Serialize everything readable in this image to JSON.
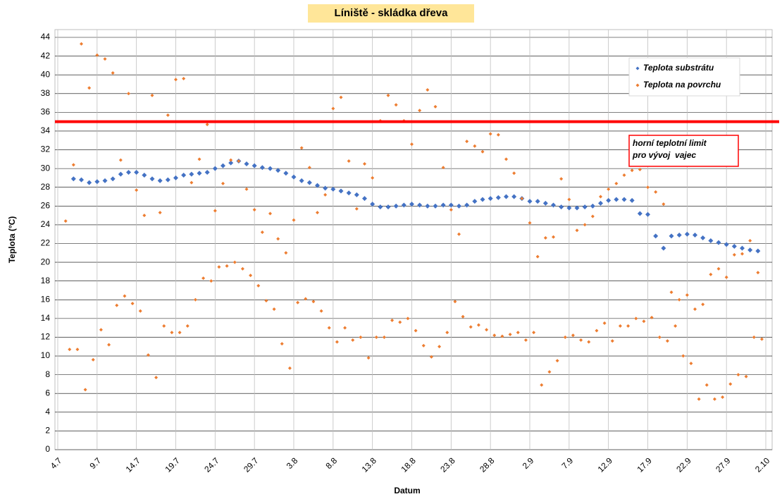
{
  "chart_data": {
    "type": "scatter",
    "title": "Líniště - skládka dřeva",
    "x_label": "Datum",
    "y_label": "Teplota (°C)",
    "xlim": [
      0,
      90
    ],
    "xticks": [
      {
        "value": 0,
        "label": "4.7"
      },
      {
        "value": 5,
        "label": "9.7"
      },
      {
        "value": 10,
        "label": "14.7"
      },
      {
        "value": 15,
        "label": "19.7"
      },
      {
        "value": 20,
        "label": "24.7"
      },
      {
        "value": 25,
        "label": "29.7"
      },
      {
        "value": 30,
        "label": "3.8"
      },
      {
        "value": 35,
        "label": "8.8"
      },
      {
        "value": 40,
        "label": "13.8"
      },
      {
        "value": 45,
        "label": "18.8"
      },
      {
        "value": 50,
        "label": "23.8"
      },
      {
        "value": 55,
        "label": "28.8"
      },
      {
        "value": 60,
        "label": "2.9"
      },
      {
        "value": 65,
        "label": "7.9"
      },
      {
        "value": 70,
        "label": "12.9"
      },
      {
        "value": 75,
        "label": "17.9"
      },
      {
        "value": 80,
        "label": "22.9"
      },
      {
        "value": 85,
        "label": "27.9"
      },
      {
        "value": 90,
        "label": "2.10"
      }
    ],
    "ylim": [
      0,
      44
    ],
    "yticks": [
      0,
      2,
      4,
      6,
      8,
      10,
      12,
      14,
      16,
      18,
      20,
      22,
      24,
      26,
      28,
      30,
      32,
      34,
      36,
      38,
      40,
      42,
      44
    ],
    "grid": true,
    "legend": "top-right",
    "limit_line": {
      "value": 35,
      "color": "#ff0000"
    },
    "annotation": [
      "horní teplotní limit",
      "pro vývoj  vajec"
    ],
    "series": [
      {
        "name": "Teplota substrátu",
        "color": "#4472c4",
        "x": [
          2,
          3,
          4,
          5,
          6,
          7,
          8,
          9,
          10,
          11,
          12,
          13,
          14,
          15,
          16,
          17,
          18,
          19,
          20,
          21,
          22,
          23,
          24,
          25,
          26,
          27,
          28,
          29,
          30,
          31,
          32,
          33,
          34,
          35,
          36,
          37,
          38,
          39,
          40,
          41,
          42,
          43,
          44,
          45,
          46,
          47,
          48,
          49,
          50,
          51,
          52,
          53,
          54,
          55,
          56,
          57,
          58,
          59,
          60,
          61,
          62,
          63,
          64,
          65,
          66,
          67,
          68,
          69,
          70,
          71,
          72,
          73,
          74,
          75,
          76,
          77,
          78,
          79,
          80,
          81,
          82,
          83,
          84,
          85,
          86,
          87,
          88,
          89
        ],
        "values": [
          28.9,
          28.8,
          28.5,
          28.6,
          28.7,
          28.9,
          29.4,
          29.6,
          29.6,
          29.3,
          28.9,
          28.7,
          28.8,
          29.0,
          29.3,
          29.4,
          29.5,
          29.6,
          30.0,
          30.3,
          30.6,
          30.8,
          30.5,
          30.3,
          30.1,
          30.0,
          29.8,
          29.5,
          29.1,
          28.7,
          28.5,
          28.2,
          27.9,
          27.8,
          27.6,
          27.4,
          27.2,
          26.8,
          26.2,
          25.9,
          25.9,
          26.0,
          26.1,
          26.2,
          26.1,
          26.0,
          26.0,
          26.1,
          26.1,
          26.0,
          26.1,
          26.5,
          26.7,
          26.8,
          26.9,
          27.0,
          27.0,
          26.8,
          26.5,
          26.5,
          26.3,
          26.1,
          25.9,
          25.8,
          25.8,
          25.9,
          26.0,
          26.3,
          26.6,
          26.7,
          26.7,
          26.6,
          25.2,
          25.1,
          22.8,
          21.5,
          22.8,
          22.9,
          23.0,
          22.9,
          22.6,
          22.3,
          22.1,
          21.9,
          21.7,
          21.5,
          21.3,
          21.2
        ]
      },
      {
        "name": "Teplota na povrchu",
        "color": "#ed7d31",
        "x": [
          1,
          1.5,
          2,
          2.5,
          3,
          3.5,
          4,
          4.5,
          5,
          5.5,
          6,
          6.5,
          7,
          7.5,
          8,
          8.5,
          9,
          9.5,
          10,
          10.5,
          11,
          11.5,
          12,
          12.5,
          13,
          13.5,
          14,
          14.5,
          15,
          15.5,
          16,
          16.5,
          17,
          17.5,
          18,
          18.5,
          19,
          19.5,
          20,
          20.5,
          21,
          21.5,
          22,
          22.5,
          23,
          23.5,
          24,
          24.5,
          25,
          25.5,
          26,
          26.5,
          27,
          27.5,
          28,
          28.5,
          29,
          29.5,
          30,
          30.5,
          31,
          31.5,
          32,
          32.5,
          33,
          33.5,
          34,
          34.5,
          35,
          35.5,
          36,
          36.5,
          37,
          37.5,
          38,
          38.5,
          39,
          39.5,
          40,
          40.5,
          41,
          41.5,
          42,
          42.5,
          43,
          43.5,
          44,
          44.5,
          45,
          45.5,
          46,
          46.5,
          47,
          47.5,
          48,
          48.5,
          49,
          49.5,
          50,
          50.5,
          51,
          51.5,
          52,
          52.5,
          53,
          53.5,
          54,
          54.5,
          55,
          55.5,
          56,
          56.5,
          57,
          57.5,
          58,
          58.5,
          59,
          59.5,
          60,
          60.5,
          61,
          61.5,
          62,
          62.5,
          63,
          63.5,
          64,
          64.5,
          65,
          65.5,
          66,
          66.5,
          67,
          67.5,
          68,
          68.5,
          69,
          69.5,
          70,
          70.5,
          71,
          71.5,
          72,
          72.5,
          73,
          73.5,
          74,
          74.5,
          75,
          75.5,
          76,
          76.5,
          77,
          77.5,
          78,
          78.5,
          79,
          79.5,
          80,
          80.5,
          81,
          81.5,
          82,
          82.5,
          83,
          83.5,
          84,
          84.5,
          85,
          85.5,
          86,
          86.5,
          87,
          87.5,
          88,
          88.5,
          89,
          89.5
        ],
        "values": [
          24.4,
          10.7,
          30.4,
          10.7,
          43.3,
          6.4,
          38.6,
          9.6,
          42.1,
          12.8,
          41.7,
          11.2,
          40.2,
          15.4,
          30.9,
          16.4,
          38.0,
          15.6,
          27.7,
          14.8,
          25.0,
          10.1,
          37.8,
          7.7,
          25.3,
          13.2,
          35.7,
          12.5,
          39.5,
          12.5,
          39.6,
          13.2,
          28.5,
          16.0,
          31.0,
          18.3,
          34.7,
          18.0,
          25.5,
          19.5,
          28.4,
          19.6,
          30.9,
          20.0,
          30.8,
          19.3,
          27.8,
          18.6,
          25.6,
          17.5,
          23.2,
          15.9,
          25.2,
          15.0,
          22.5,
          11.3,
          21.0,
          8.7,
          24.5,
          15.7,
          32.2,
          16.1,
          30.1,
          15.8,
          25.3,
          14.8,
          27.2,
          13.0,
          36.4,
          11.5,
          37.6,
          13.0,
          30.8,
          11.7,
          25.7,
          12.0,
          30.5,
          9.8,
          29.0,
          12.0,
          35.1,
          12.0,
          37.8,
          13.8,
          36.8,
          13.6,
          35.1,
          14.0,
          32.6,
          12.7,
          36.2,
          11.1,
          38.4,
          9.9,
          36.6,
          11.0,
          30.1,
          12.5,
          25.6,
          15.8,
          23.0,
          14.2,
          32.9,
          13.1,
          32.4,
          13.3,
          31.8,
          12.8,
          33.7,
          12.2,
          33.6,
          12.1,
          31.0,
          12.3,
          29.5,
          12.5,
          26.8,
          11.7,
          24.2,
          12.5,
          20.6,
          6.9,
          22.6,
          8.3,
          22.7,
          9.5,
          28.9,
          12.0,
          26.7,
          12.2,
          23.4,
          11.7,
          24.0,
          11.5,
          24.9,
          12.7,
          27.0,
          13.5,
          27.8,
          11.6,
          28.4,
          13.2,
          29.3,
          13.2,
          29.8,
          14.0,
          29.9,
          13.7,
          28.0,
          14.1,
          27.5,
          12.0,
          26.2,
          11.6,
          16.8,
          13.2,
          16.0,
          10.0,
          16.5,
          9.2,
          15.0,
          5.4,
          15.5,
          6.9,
          18.7,
          5.4,
          19.3,
          5.6,
          18.4,
          7.0,
          20.8,
          8.0,
          20.9,
          7.8,
          22.3,
          12.0,
          18.9,
          11.8
        ]
      }
    ]
  }
}
